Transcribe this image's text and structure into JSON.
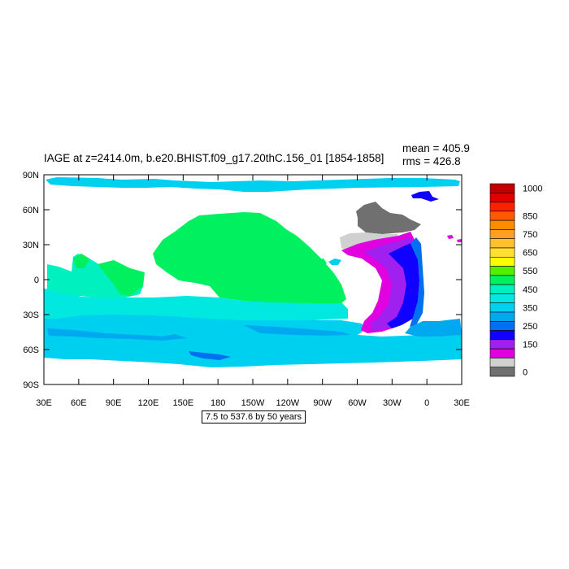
{
  "title": "IAGE at z=2414.0m, b.e20.BHIST.f09_g17.20thC.156_01 [1854-1858]",
  "stats": {
    "mean": "mean = 405.9",
    "rms": "rms = 426.8"
  },
  "note": "7.5 to 537.6 by 50 years",
  "map": {
    "lat_ticks": [
      "90N",
      "60N",
      "30N",
      "0",
      "30S",
      "60S",
      "90S"
    ],
    "lon_ticks": [
      "30E",
      "60E",
      "90E",
      "120E",
      "150E",
      "180",
      "150W",
      "120W",
      "90W",
      "60W",
      "30W",
      "0",
      "30E"
    ],
    "colorbar": {
      "labels": [
        {
          "text": "1000",
          "slot": 0
        },
        {
          "text": "850",
          "slot": 3
        },
        {
          "text": "750",
          "slot": 5
        },
        {
          "text": "650",
          "slot": 7
        },
        {
          "text": "550",
          "slot": 9
        },
        {
          "text": "450",
          "slot": 11
        },
        {
          "text": "350",
          "slot": 13
        },
        {
          "text": "250",
          "slot": 15
        },
        {
          "text": "150",
          "slot": 17
        },
        {
          "text": "0",
          "slot": 20
        }
      ],
      "colors": [
        "#c00000",
        "#e00000",
        "#ff2000",
        "#ff5a00",
        "#ff8c00",
        "#ffa020",
        "#ffc030",
        "#ffe030",
        "#ffff00",
        "#50f000",
        "#00f060",
        "#00f0c0",
        "#00e8e0",
        "#00d0f0",
        "#00a8f0",
        "#0070f0",
        "#1000ff",
        "#a020f0",
        "#e000e0",
        "#d0d0d0",
        "#707070"
      ]
    }
  }
}
